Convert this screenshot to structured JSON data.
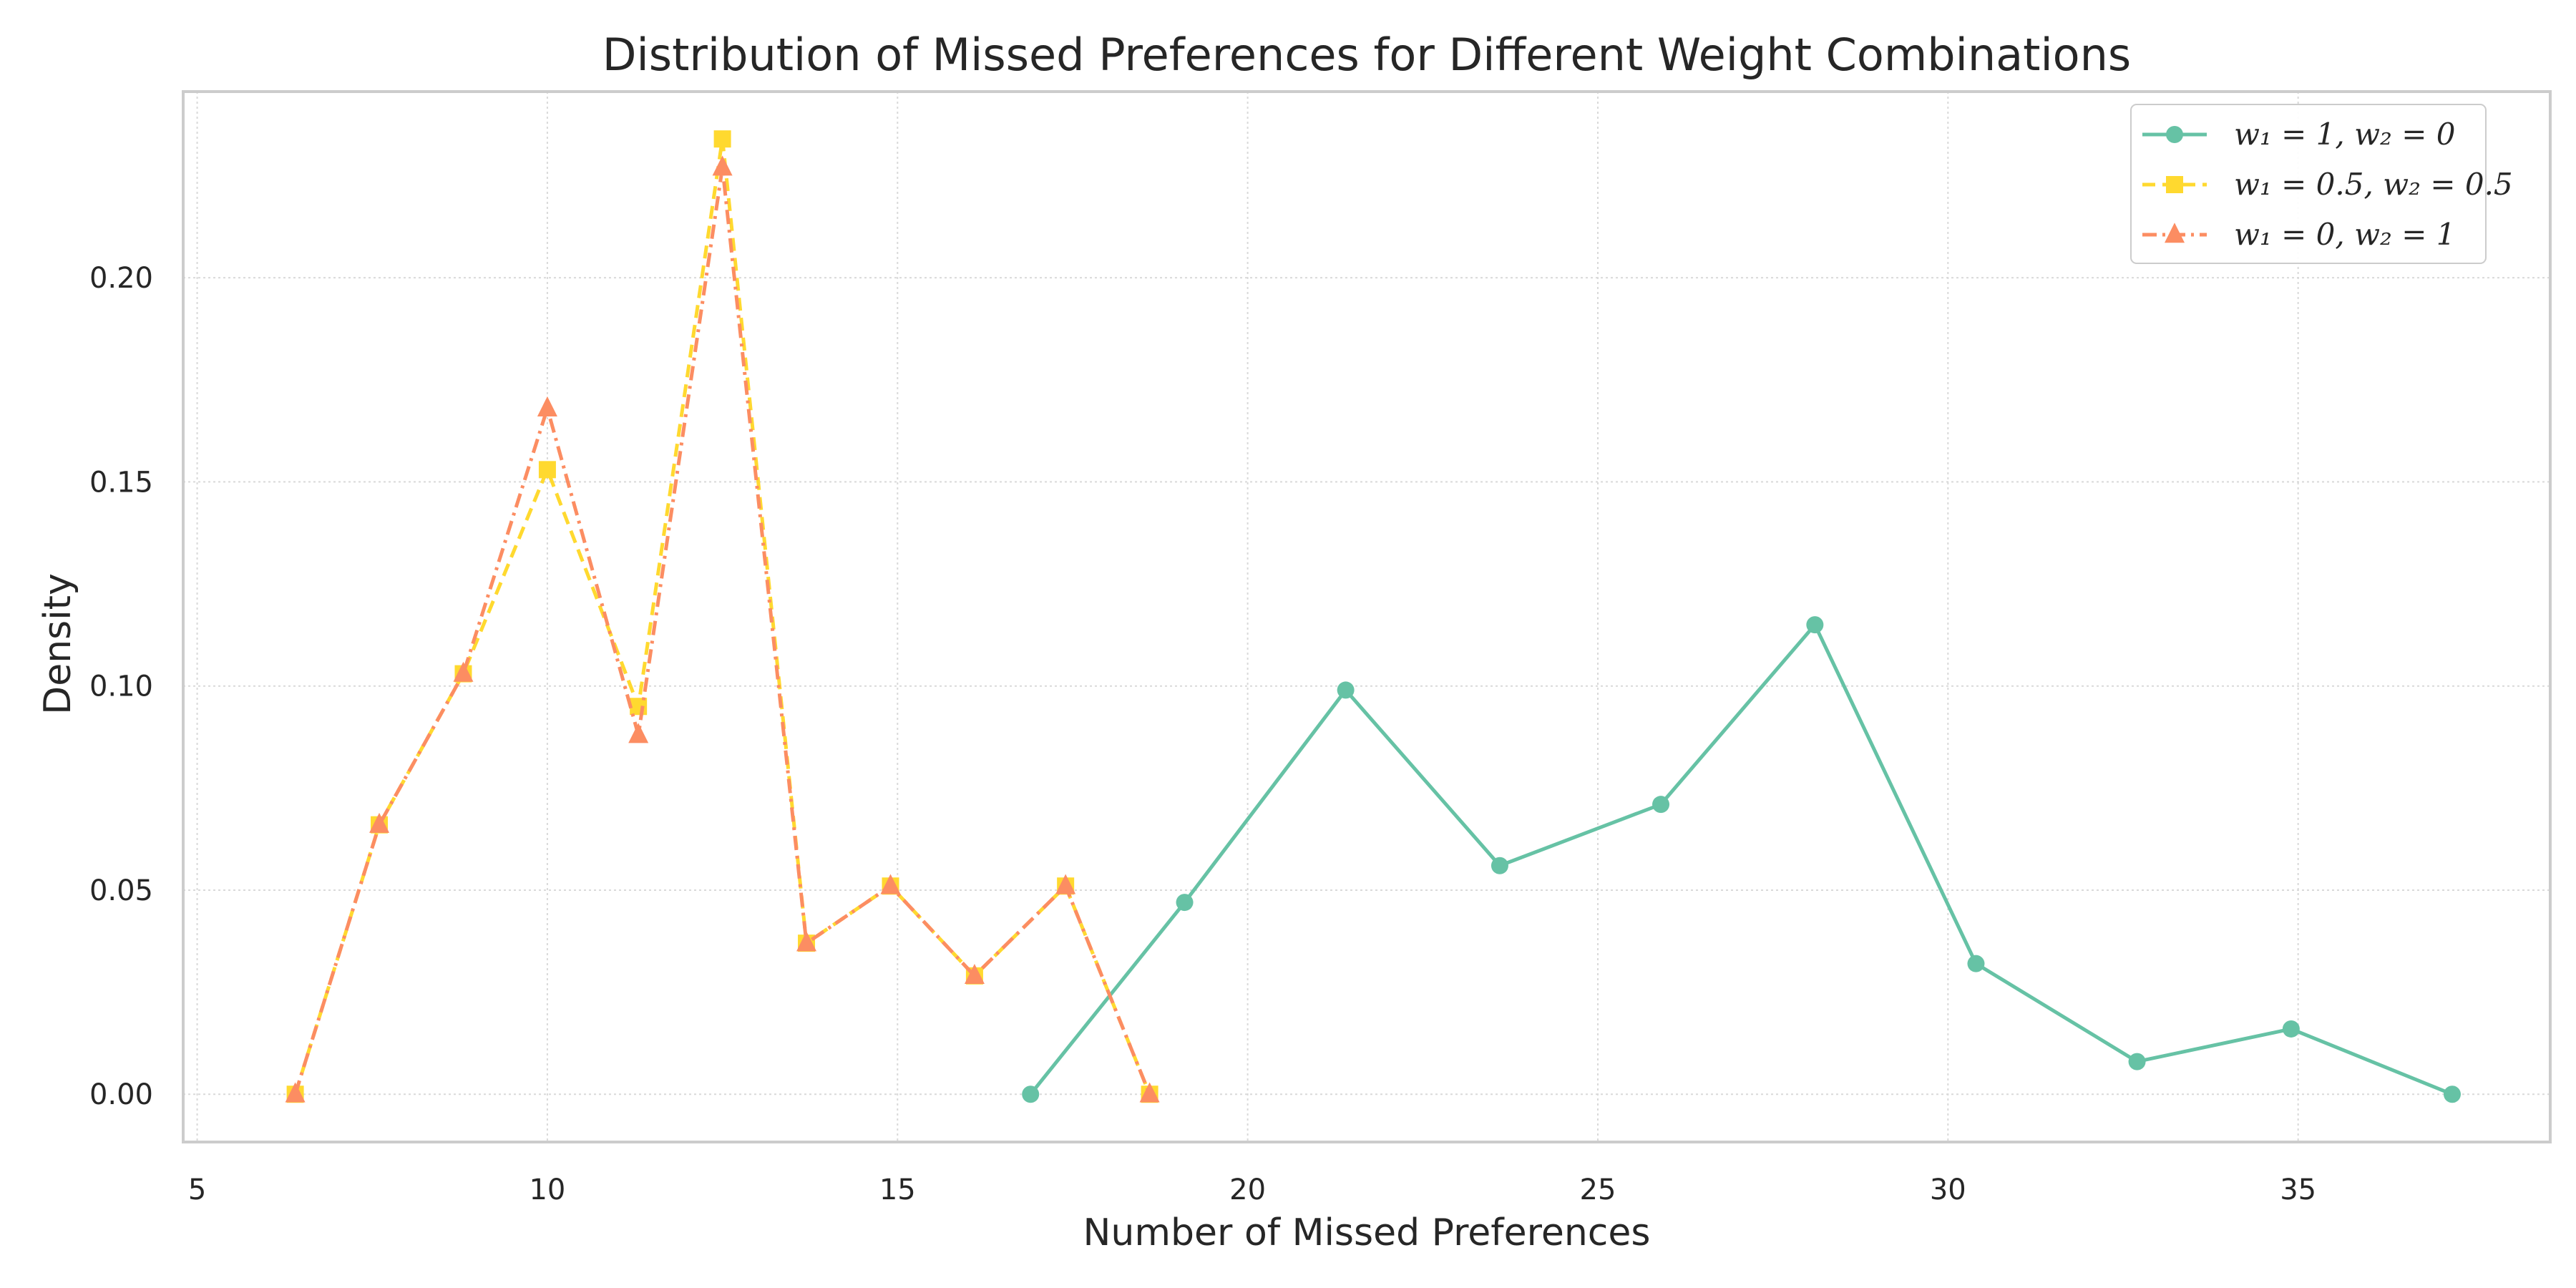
{
  "chart_data": {
    "type": "line",
    "title": "Distribution of Missed Preferences for Different Weight Combinations",
    "xlabel": "Number of Missed Preferences",
    "ylabel": "Density",
    "xlim": [
      4.8,
      38.6
    ],
    "ylim": [
      -0.0117,
      0.2456
    ],
    "xticks": [
      5,
      10,
      15,
      20,
      25,
      30,
      35
    ],
    "yticks": [
      0.0,
      0.05,
      0.1,
      0.15,
      0.2
    ],
    "ytick_labels": [
      "0.00",
      "0.05",
      "0.10",
      "0.15",
      "0.20"
    ],
    "grid": true,
    "legend_position": "top-right",
    "series": [
      {
        "name": "w₁ = 1, w₂ = 0",
        "color": "#66c2a5",
        "marker": "circle",
        "line_style": "solid",
        "x": [
          16.9,
          19.1,
          21.4,
          23.6,
          25.9,
          28.1,
          30.4,
          32.7,
          34.9,
          37.2
        ],
        "y": [
          0.0,
          0.047,
          0.099,
          0.056,
          0.071,
          0.115,
          0.032,
          0.008,
          0.016,
          0.0
        ]
      },
      {
        "name": "w₁ = 0.5, w₂ = 0.5",
        "color": "#ffd92f",
        "marker": "square",
        "line_style": "dashed",
        "x": [
          6.4,
          7.6,
          8.8,
          10.0,
          11.3,
          12.5,
          13.7,
          14.9,
          16.1,
          17.4,
          18.6
        ],
        "y": [
          0.0,
          0.066,
          0.103,
          0.153,
          0.095,
          0.234,
          0.037,
          0.051,
          0.029,
          0.051,
          0.0
        ]
      },
      {
        "name": "w₁ = 0, w₂ = 1",
        "color": "#fc8d62",
        "marker": "triangle",
        "line_style": "dashdot",
        "x": [
          6.4,
          7.6,
          8.8,
          10.0,
          11.3,
          12.5,
          13.7,
          14.9,
          16.1,
          17.4,
          18.6
        ],
        "y": [
          0.0,
          0.066,
          0.103,
          0.168,
          0.088,
          0.227,
          0.037,
          0.051,
          0.029,
          0.051,
          0.0
        ]
      }
    ]
  }
}
